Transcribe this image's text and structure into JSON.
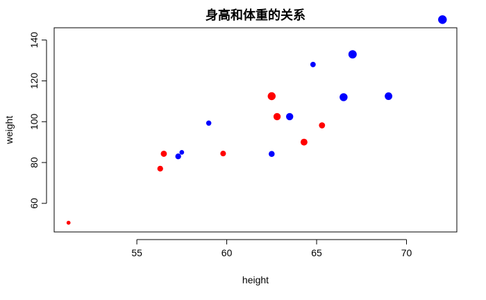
{
  "chart_data": {
    "type": "scatter",
    "title": "身高和体重的关系",
    "xlabel": "height",
    "ylabel": "weight",
    "xlim": [
      50.4,
      72.8
    ],
    "ylim": [
      46,
      146
    ],
    "xticks": [
      55,
      60,
      65,
      70
    ],
    "yticks": [
      60,
      80,
      100,
      120,
      140
    ],
    "grid": false,
    "colors": {
      "female": "#ff0000",
      "male": "#0000ff"
    },
    "points": [
      {
        "x": 51.2,
        "y": 50.5,
        "color": "red",
        "size": 0.55
      },
      {
        "x": 56.3,
        "y": 77,
        "color": "red",
        "size": 0.8
      },
      {
        "x": 56.5,
        "y": 84.3,
        "color": "red",
        "size": 0.85
      },
      {
        "x": 57.3,
        "y": 83,
        "color": "blue",
        "size": 0.8
      },
      {
        "x": 57.5,
        "y": 85,
        "color": "blue",
        "size": 0.65
      },
      {
        "x": 59.0,
        "y": 99.3,
        "color": "blue",
        "size": 0.72
      },
      {
        "x": 59.8,
        "y": 84.4,
        "color": "red",
        "size": 0.78
      },
      {
        "x": 62.5,
        "y": 84.2,
        "color": "blue",
        "size": 0.82
      },
      {
        "x": 62.5,
        "y": 112.5,
        "color": "red",
        "size": 1.1
      },
      {
        "x": 62.8,
        "y": 102.5,
        "color": "red",
        "size": 1.0
      },
      {
        "x": 63.5,
        "y": 102.5,
        "color": "blue",
        "size": 1.0
      },
      {
        "x": 64.3,
        "y": 90,
        "color": "red",
        "size": 0.95
      },
      {
        "x": 64.8,
        "y": 128,
        "color": "blue",
        "size": 0.75
      },
      {
        "x": 65.3,
        "y": 98.2,
        "color": "red",
        "size": 0.85
      },
      {
        "x": 66.5,
        "y": 112,
        "color": "blue",
        "size": 1.1
      },
      {
        "x": 67.0,
        "y": 133,
        "color": "blue",
        "size": 1.15
      },
      {
        "x": 69.0,
        "y": 112.5,
        "color": "blue",
        "size": 1.05
      },
      {
        "x": 72.0,
        "y": 150,
        "color": "blue",
        "size": 1.2
      }
    ]
  }
}
